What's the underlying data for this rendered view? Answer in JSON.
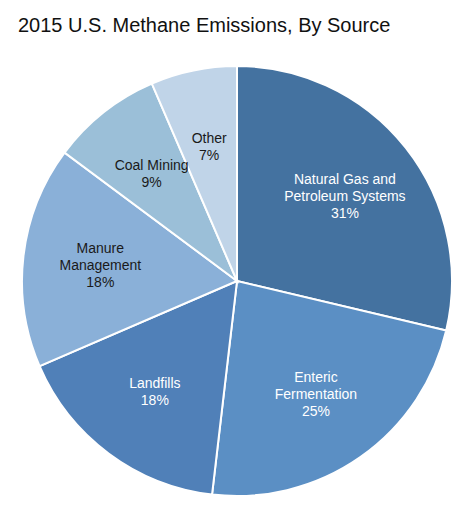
{
  "chart_data": {
    "type": "pie",
    "title": "2015 U.S. Methane Emissions, By Source",
    "categories": [
      "Natural Gas and\nPetroleum Systems",
      "Enteric\nFermentation",
      "Landfills",
      "Manure\nManagement",
      "Coal Mining",
      "Other"
    ],
    "values": [
      31,
      25,
      18,
      18,
      9,
      7
    ],
    "value_labels": [
      "31%",
      "25%",
      "18%",
      "18%",
      "9%",
      "7%"
    ],
    "data_labels": true,
    "colors": [
      "#4472a0",
      "#5b8fc4",
      "#5080b8",
      "#8ab0d8",
      "#9bbfd8",
      "#c0d4e8"
    ]
  }
}
